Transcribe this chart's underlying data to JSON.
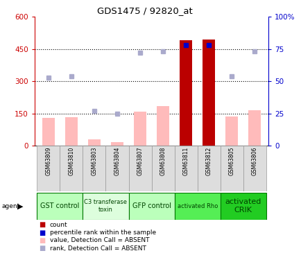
{
  "title": "GDS1475 / 92820_at",
  "samples": [
    "GSM63809",
    "GSM63810",
    "GSM63803",
    "GSM63804",
    "GSM63807",
    "GSM63808",
    "GSM63811",
    "GSM63812",
    "GSM63805",
    "GSM63806"
  ],
  "bar_values": [
    130,
    133,
    30,
    15,
    160,
    185,
    490,
    495,
    135,
    165
  ],
  "bar_colors": [
    "#ffbbbb",
    "#ffbbbb",
    "#ffbbbb",
    "#ffbbbb",
    "#ffbbbb",
    "#ffbbbb",
    "#bb0000",
    "#bb0000",
    "#ffbbbb",
    "#ffbbbb"
  ],
  "dot_values_pct": [
    53,
    54,
    27,
    25,
    72,
    73,
    78,
    78,
    54,
    73
  ],
  "dot_colors": [
    "#aaaacc",
    "#aaaacc",
    "#aaaacc",
    "#aaaacc",
    "#aaaacc",
    "#aaaacc",
    "#0000cc",
    "#0000cc",
    "#aaaacc",
    "#aaaacc"
  ],
  "agent_groups": [
    {
      "label": "GST control",
      "start": 0,
      "end": 2,
      "color": "#bbffbb",
      "font_size": 7
    },
    {
      "label": "C3 transferase\ntoxin",
      "start": 2,
      "end": 4,
      "color": "#ddfedd",
      "font_size": 6
    },
    {
      "label": "GFP control",
      "start": 4,
      "end": 6,
      "color": "#bbffbb",
      "font_size": 7
    },
    {
      "label": "activated Rho",
      "start": 6,
      "end": 8,
      "color": "#55ee55",
      "font_size": 6
    },
    {
      "label": "activated\nCRIK",
      "start": 8,
      "end": 10,
      "color": "#22cc22",
      "font_size": 8
    }
  ],
  "ylim_left": [
    0,
    600
  ],
  "ylim_right": [
    0,
    100
  ],
  "yticks_left": [
    0,
    150,
    300,
    450,
    600
  ],
  "yticks_right": [
    0,
    25,
    50,
    75,
    100
  ],
  "ytick_labels_right": [
    "0",
    "25",
    "50",
    "75",
    "100%"
  ],
  "left_axis_color": "#cc0000",
  "right_axis_color": "#0000cc",
  "legend_items": [
    {
      "color": "#bb0000",
      "label": "count"
    },
    {
      "color": "#0000cc",
      "label": "percentile rank within the sample"
    },
    {
      "color": "#ffbbbb",
      "label": "value, Detection Call = ABSENT"
    },
    {
      "color": "#aaaacc",
      "label": "rank, Detection Call = ABSENT"
    }
  ]
}
